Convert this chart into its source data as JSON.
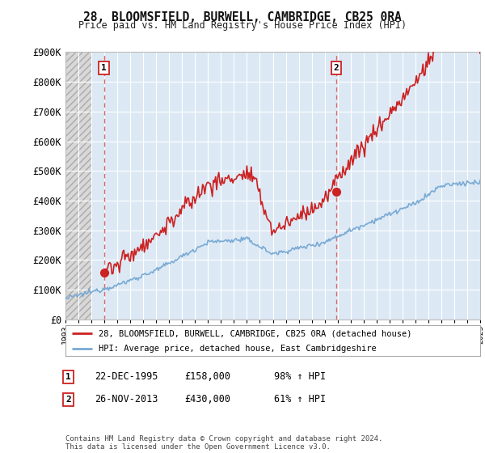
{
  "title": "28, BLOOMSFIELD, BURWELL, CAMBRIDGE, CB25 0RA",
  "subtitle": "Price paid vs. HM Land Registry's House Price Index (HPI)",
  "ylim": [
    0,
    900000
  ],
  "yticks": [
    0,
    100000,
    200000,
    300000,
    400000,
    500000,
    600000,
    700000,
    800000,
    900000
  ],
  "ytick_labels": [
    "£0",
    "£100K",
    "£200K",
    "£300K",
    "£400K",
    "£500K",
    "£600K",
    "£700K",
    "£800K",
    "£900K"
  ],
  "sale1_date": 1995.97,
  "sale1_price": 158000,
  "sale1_label": "1",
  "sale2_date": 2013.9,
  "sale2_price": 430000,
  "sale2_label": "2",
  "sale_color": "#cc2222",
  "hpi_color": "#7aaad4",
  "vline_color": "#dd6666",
  "chart_bg": "#dce9f5",
  "hatch_bg": "#cccccc",
  "background_color": "#ffffff",
  "legend_entry1": "28, BLOOMSFIELD, BURWELL, CAMBRIDGE, CB25 0RA (detached house)",
  "legend_entry2": "HPI: Average price, detached house, East Cambridgeshire",
  "annotation1_date": "22-DEC-1995",
  "annotation1_price": "£158,000",
  "annotation1_hpi": "98% ↑ HPI",
  "annotation2_date": "26-NOV-2013",
  "annotation2_price": "£430,000",
  "annotation2_hpi": "61% ↑ HPI",
  "footer": "Contains HM Land Registry data © Crown copyright and database right 2024.\nThis data is licensed under the Open Government Licence v3.0.",
  "xmin": 1993,
  "xmax": 2025,
  "hatch_end": 1995.0
}
